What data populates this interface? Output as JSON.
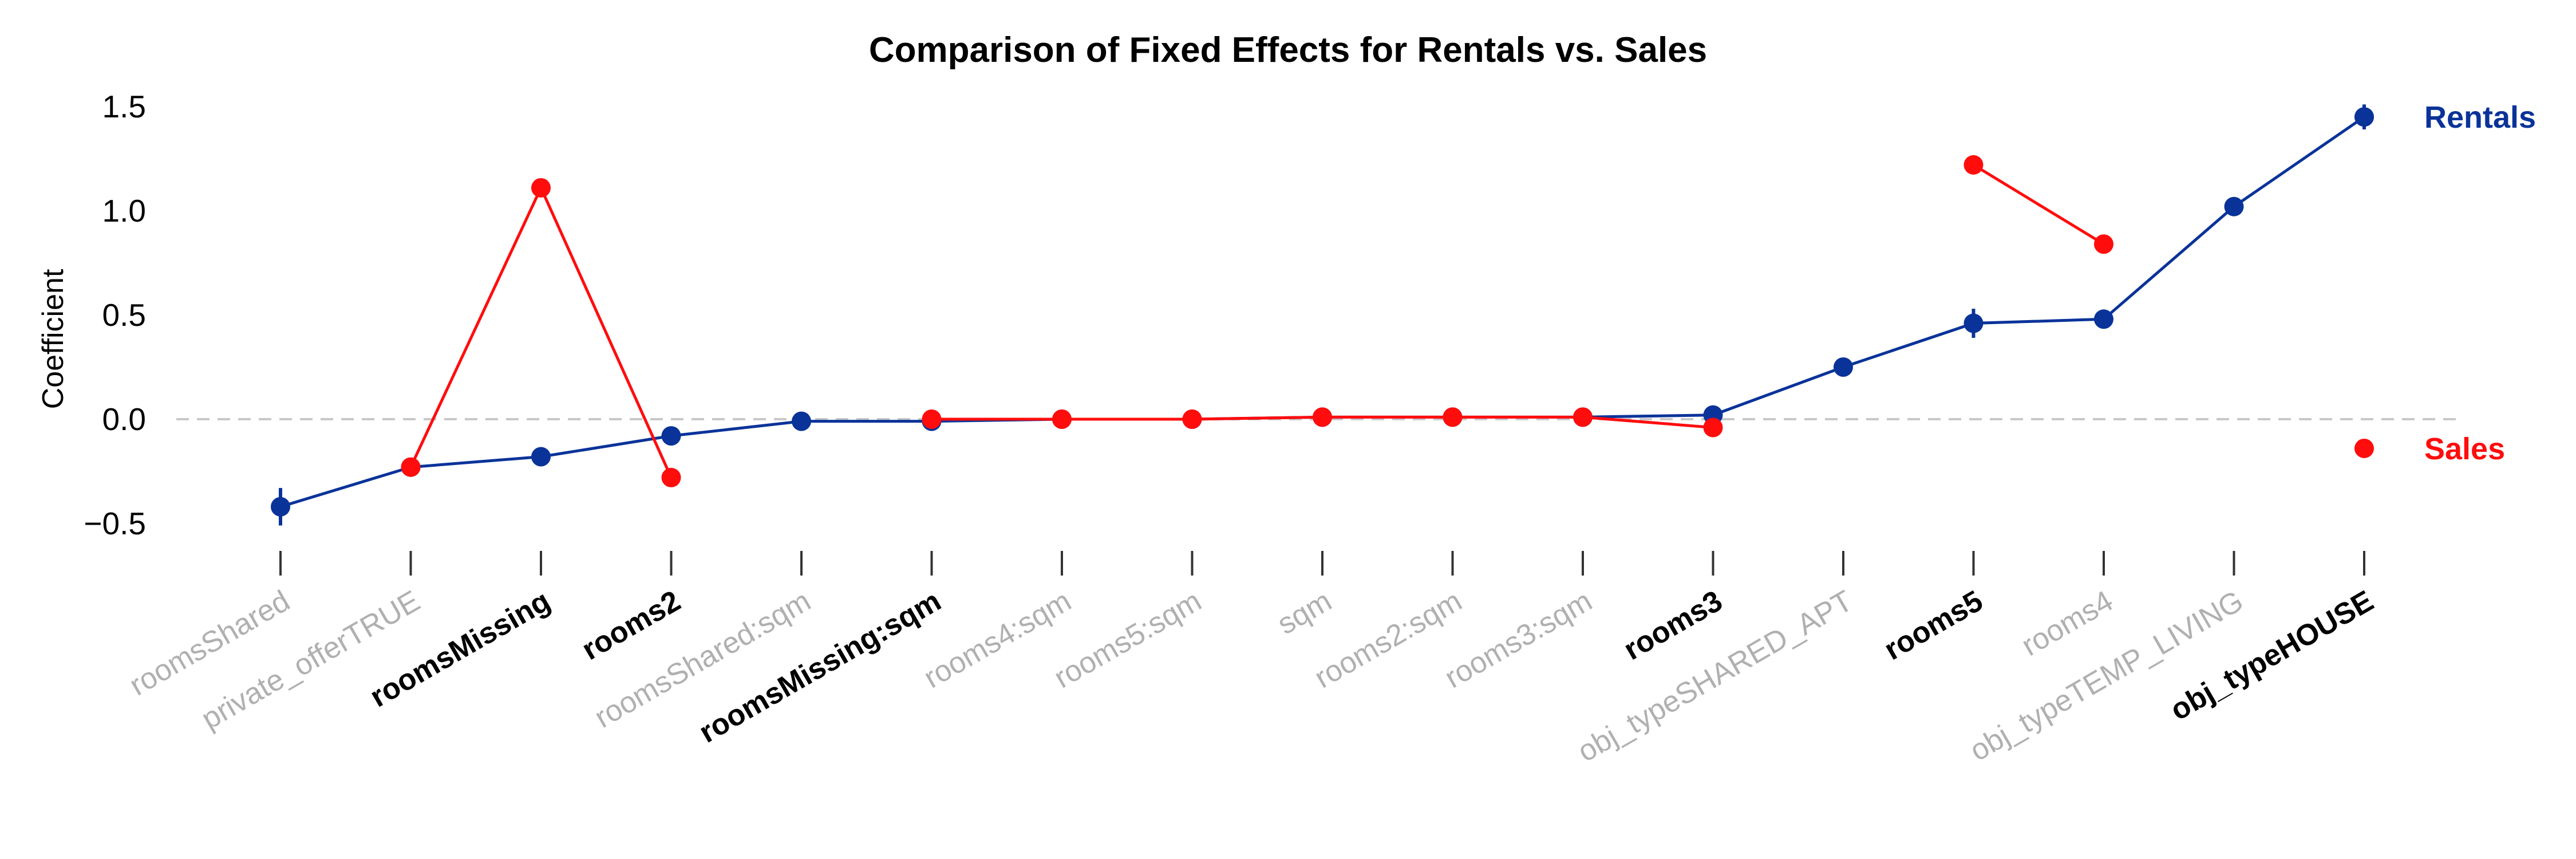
{
  "chart_data": {
    "type": "line",
    "title": "Comparison of Fixed Effects for Rentals vs. Sales",
    "xlabel": "",
    "ylabel": "Coefficient",
    "ylim": [
      -0.6,
      1.55
    ],
    "yticks": [
      -0.5,
      0.0,
      0.5,
      1.0,
      1.5
    ],
    "ytick_labels": [
      "−0.5",
      "0.0",
      "0.5",
      "1.0",
      "1.5"
    ],
    "reference_line": 0,
    "grid": false,
    "legend_placement": "right",
    "categories": [
      {
        "label": "roomsShared",
        "bold": false
      },
      {
        "label": "private_offerTRUE",
        "bold": false
      },
      {
        "label": "roomsMissing",
        "bold": true
      },
      {
        "label": "rooms2",
        "bold": true
      },
      {
        "label": "roomsShared:sqm",
        "bold": false
      },
      {
        "label": "roomsMissing:sqm",
        "bold": true
      },
      {
        "label": "rooms4:sqm",
        "bold": false
      },
      {
        "label": "rooms5:sqm",
        "bold": false
      },
      {
        "label": "sqm",
        "bold": false
      },
      {
        "label": "rooms2:sqm",
        "bold": false
      },
      {
        "label": "rooms3:sqm",
        "bold": false
      },
      {
        "label": "rooms3",
        "bold": true
      },
      {
        "label": "obj_typeSHARED_APT",
        "bold": false
      },
      {
        "label": "rooms5",
        "bold": true
      },
      {
        "label": "rooms4",
        "bold": false
      },
      {
        "label": "obj_typeTEMP_LIVING",
        "bold": false
      },
      {
        "label": "obj_typeHOUSE",
        "bold": true
      }
    ],
    "series": [
      {
        "name": "Rentals",
        "color": "#0a3399",
        "values": [
          -0.42,
          -0.23,
          -0.18,
          -0.08,
          -0.01,
          -0.01,
          0.0,
          0.0,
          0.01,
          0.01,
          0.01,
          0.02,
          0.25,
          0.46,
          0.48,
          1.02,
          1.45
        ],
        "error": [
          0.09,
          0.02,
          0.02,
          0.02,
          0.01,
          0.01,
          0.005,
          0.005,
          0.005,
          0.005,
          0.005,
          0.01,
          0.02,
          0.07,
          0.02,
          0.02,
          0.06
        ]
      },
      {
        "name": "Sales",
        "color": "#ff0d0d",
        "values": [
          null,
          -0.23,
          1.11,
          -0.28,
          null,
          0.0,
          0.0,
          0.0,
          0.01,
          0.01,
          0.01,
          -0.04,
          null,
          1.22,
          0.84,
          null,
          null
        ],
        "error": [
          null,
          0.02,
          0.02,
          0.02,
          null,
          0.005,
          0.005,
          0.005,
          0.005,
          0.005,
          0.005,
          0.01,
          null,
          0.02,
          0.02,
          null,
          null
        ]
      }
    ],
    "legend": [
      {
        "label": "Rentals",
        "color": "#0a3399",
        "marker_value": 1.45
      },
      {
        "label": "Sales",
        "color": "#ff0d0d",
        "marker_value": -0.14
      }
    ],
    "colors": {
      "bold_tick": "#000000",
      "regular_tick": "#b0b0b0",
      "zero_line": "#c8c8c8",
      "axis_tick": "#333333"
    }
  }
}
